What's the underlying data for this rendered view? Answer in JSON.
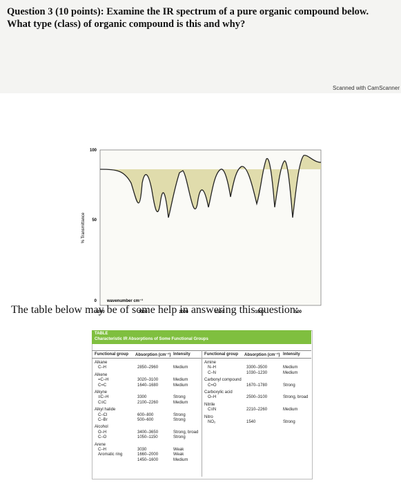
{
  "question": {
    "label": "Question 3 (10 points):",
    "text": "Examine the IR spectrum of a pure organic compound below. What type (class) of organic compound is this and why?"
  },
  "scanner_note": "Scanned with CamScanner",
  "spectrum": {
    "y_axis_label": "% Transmittance",
    "x_axis_label": "wavenumber cm⁻¹",
    "y_tick_labels": [
      100,
      50,
      0
    ],
    "x_tick_labels": [
      4000,
      3000,
      2000,
      1500,
      1000,
      500
    ]
  },
  "intro": "The table below may be of some help in answering this question:",
  "table": {
    "tag": "TABLE",
    "title": "Characteristic IR Absorptions of Some Functional Groups",
    "headers": [
      "Functional group",
      "Absorption (cm⁻¹)",
      "Intensity"
    ],
    "left": [
      {
        "group": "Alkane",
        "entries": [
          [
            "C–H",
            "2850–2960",
            "Medium"
          ]
        ]
      },
      {
        "group": "Alkene",
        "entries": [
          [
            "=C–H",
            "3020–3100",
            "Medium"
          ],
          [
            "C=C",
            "1640–1680",
            "Medium"
          ]
        ]
      },
      {
        "group": "Alkyne",
        "entries": [
          [
            "≡C–H",
            "3300",
            "Strong"
          ],
          [
            "C≡C",
            "2100–2260",
            "Medium"
          ]
        ]
      },
      {
        "group": "Alkyl halide",
        "entries": [
          [
            "C–Cl",
            "600–800",
            "Strong"
          ],
          [
            "C–Br",
            "500–600",
            "Strong"
          ]
        ]
      },
      {
        "group": "Alcohol",
        "entries": [
          [
            "O–H",
            "3400–3650",
            "Strong, broad"
          ],
          [
            "C–O",
            "1050–1150",
            "Strong"
          ]
        ]
      },
      {
        "group": "Arene",
        "entries": [
          [
            "C–H",
            "3030",
            "Weak"
          ],
          [
            "Aromatic ring",
            "1660–2000",
            "Weak"
          ],
          [
            "",
            "1450–1600",
            "Medium"
          ]
        ]
      }
    ],
    "right": [
      {
        "group": "Amine",
        "entries": [
          [
            "N–H",
            "3300–3500",
            "Medium"
          ],
          [
            "C–N",
            "1030–1230",
            "Medium"
          ]
        ]
      },
      {
        "group": "Carbonyl compound",
        "entries": [
          [
            "C=O",
            "1670–1780",
            "Strong"
          ]
        ]
      },
      {
        "group": "Carboxylic acid",
        "entries": [
          [
            "O–H",
            "2500–3100",
            "Strong, broad"
          ]
        ]
      },
      {
        "group": "Nitrile",
        "entries": [
          [
            "C≡N",
            "2210–2260",
            "Medium"
          ]
        ]
      },
      {
        "group": "Nitro",
        "entries": [
          [
            "NO₂",
            "1540",
            "Strong"
          ]
        ]
      }
    ]
  }
}
